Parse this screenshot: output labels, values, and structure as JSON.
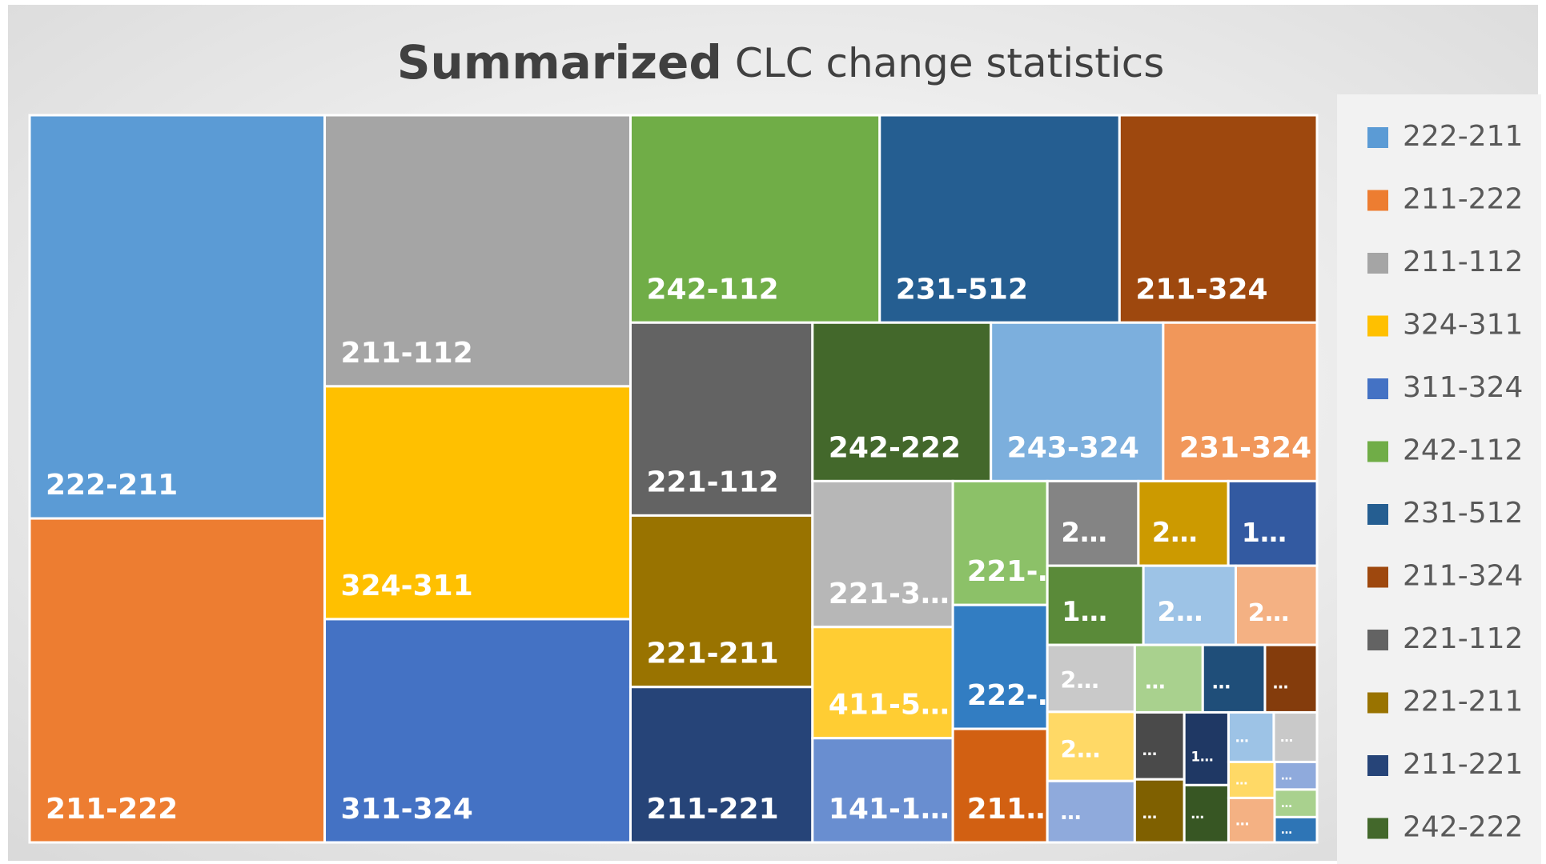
{
  "chart_data": {
    "type": "treemap",
    "title": "Summarized",
    "subtitle": "CLC change statistics",
    "items": [
      {
        "label": "222-211",
        "value": 122,
        "color": "#5B9BD5"
      },
      {
        "label": "211-222",
        "value": 98,
        "color": "#ED7D31"
      },
      {
        "label": "211-112",
        "value": 85,
        "color": "#A5A5A5"
      },
      {
        "label": "324-311",
        "value": 73,
        "color": "#FFC000"
      },
      {
        "label": "311-324",
        "value": 70,
        "color": "#4472C4"
      },
      {
        "label": "242-112",
        "value": 53,
        "color": "#70AD47"
      },
      {
        "label": "231-512",
        "value": 51,
        "color": "#255E91"
      },
      {
        "label": "211-324",
        "value": 42,
        "color": "#9E480E"
      },
      {
        "label": "221-112",
        "value": 36,
        "color": "#636363"
      },
      {
        "label": "221-211",
        "value": 32,
        "color": "#997300"
      },
      {
        "label": "211-221",
        "value": 29,
        "color": "#264478"
      },
      {
        "label": "242-222",
        "value": 29,
        "color": "#43682B"
      },
      {
        "label": "243-324",
        "value": 28,
        "color": "#7CAFDD"
      },
      {
        "label": "231-324",
        "value": 25,
        "color": "#F1975A"
      },
      {
        "label": "221-3…",
        "value": 21,
        "color": "#B7B7B7"
      },
      {
        "label": "411-5…",
        "value": 16,
        "color": "#FFCD33"
      },
      {
        "label": "141-1…",
        "value": 15,
        "color": "#698ED0"
      },
      {
        "label": "221-…",
        "value": 12,
        "color": "#8CC168"
      },
      {
        "label": "222-…",
        "value": 12,
        "color": "#327DC2"
      },
      {
        "label": "211…",
        "value": 11,
        "color": "#D26012"
      },
      {
        "label": "2…",
        "value": 7.9,
        "color": "#848484"
      },
      {
        "label": "2…",
        "value": 7.8,
        "color": "#CC9A00"
      },
      {
        "label": "1…",
        "value": 7.7,
        "color": "#335AA1"
      },
      {
        "label": "1…",
        "value": 7.8,
        "color": "#5A8A39"
      },
      {
        "label": "2…",
        "value": 7.5,
        "color": "#9DC3E6"
      },
      {
        "label": "2…",
        "value": 6.6,
        "color": "#F4B183"
      },
      {
        "label": "2…",
        "value": 6,
        "color": "#C9C9C9"
      },
      {
        "label": "2…",
        "value": 6.2,
        "color": "#FFD966"
      },
      {
        "label": "…",
        "value": 5.5,
        "color": "#8FAADC"
      },
      {
        "label": "…",
        "value": 4.7,
        "color": "#A9D18E"
      },
      {
        "label": "…",
        "value": 4.3,
        "color": "#1F4E79"
      },
      {
        "label": "…",
        "value": 3.6,
        "color": "#843C0C"
      },
      {
        "label": "…",
        "value": 3.4,
        "color": "#4A4A4A"
      },
      {
        "label": "…",
        "value": 3.2,
        "color": "#7F6000"
      },
      {
        "label": "1…",
        "value": 3.3,
        "color": "#1F3864"
      },
      {
        "label": "…",
        "value": 2.6,
        "color": "#375623"
      },
      {
        "label": "…",
        "value": 2.3,
        "color": "#9DC3E6"
      },
      {
        "label": "…",
        "value": 2.2,
        "color": "#C9C9C9"
      },
      {
        "label": "…",
        "value": 1.7,
        "color": "#FFD966"
      },
      {
        "label": "…",
        "value": 2.1,
        "color": "#F4B183"
      },
      {
        "label": "…",
        "value": 1.2,
        "color": "#8FAADC"
      },
      {
        "label": "…",
        "value": 1.2,
        "color": "#A9D18E"
      },
      {
        "label": "…",
        "value": 1.1,
        "color": "#2E75B6"
      }
    ],
    "legend": [
      "222-211",
      "211-222",
      "211-112",
      "324-311",
      "311-324",
      "242-112",
      "231-512",
      "211-324",
      "221-112",
      "221-211",
      "211-221",
      "242-222"
    ]
  }
}
